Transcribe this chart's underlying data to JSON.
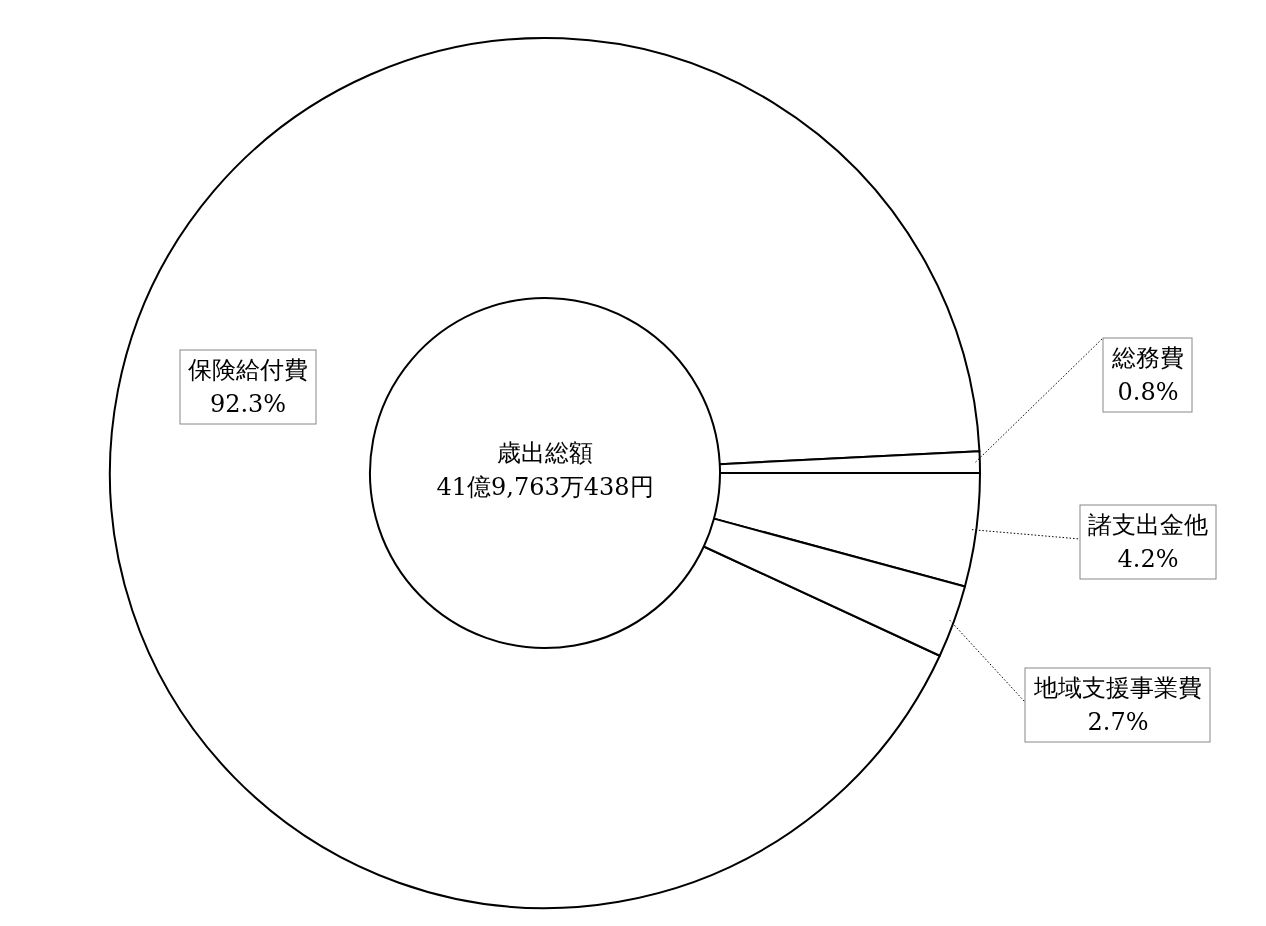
{
  "chart_data": {
    "type": "donut",
    "title": "歳出総額",
    "subtitle": "41億9,763万438円",
    "categories": [
      "保険給付費",
      "総務費",
      "諸支出金他",
      "地域支援事業費"
    ],
    "values": [
      92.3,
      0.8,
      4.2,
      2.7
    ],
    "value_labels": [
      "92.3%",
      "0.8%",
      "4.2%",
      "2.7%"
    ],
    "colors": [
      "#ffffff",
      "#ffffff",
      "#ffffff",
      "#ffffff"
    ]
  }
}
